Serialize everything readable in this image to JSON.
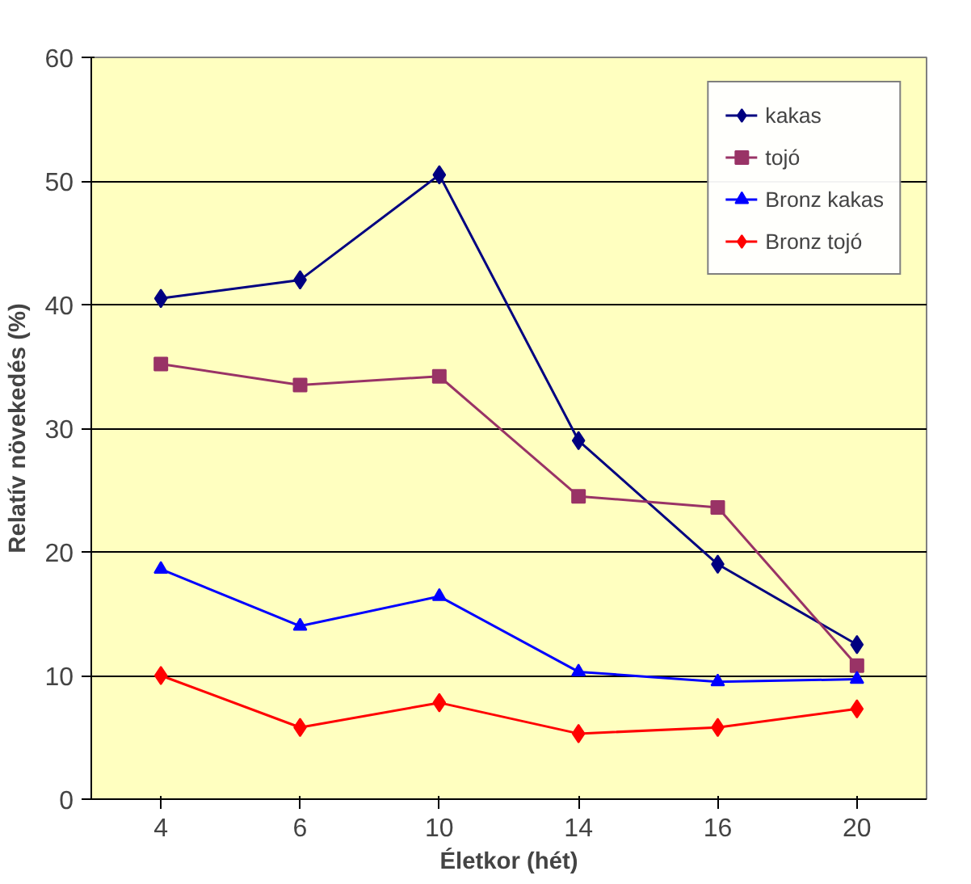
{
  "chart_data": {
    "type": "line",
    "xlabel": "Életkor (hét)",
    "ylabel": "Relatív növekedés (%)",
    "categories": [
      "4",
      "6",
      "10",
      "14",
      "16",
      "20"
    ],
    "ylim": [
      0,
      60
    ],
    "yticks": [
      0,
      10,
      20,
      30,
      40,
      50,
      60
    ],
    "grid": "y",
    "legend": "top right",
    "series": [
      {
        "name": "kakas",
        "color": "#000080",
        "marker": "diamond",
        "values": [
          40.5,
          42,
          50.5,
          29,
          19,
          12.5
        ]
      },
      {
        "name": "tojó",
        "color": "#993366",
        "marker": "square",
        "values": [
          35.2,
          33.5,
          34.2,
          24.5,
          23.6,
          10.8
        ]
      },
      {
        "name": "Bronz kakas",
        "color": "#0000ff",
        "marker": "triangle",
        "values": [
          18.6,
          14,
          16.4,
          10.3,
          9.5,
          9.7
        ]
      },
      {
        "name": "Bronz tojó",
        "color": "#ff0000",
        "marker": "diamond",
        "values": [
          10,
          5.8,
          7.8,
          5.3,
          5.8,
          7.3
        ]
      }
    ]
  }
}
